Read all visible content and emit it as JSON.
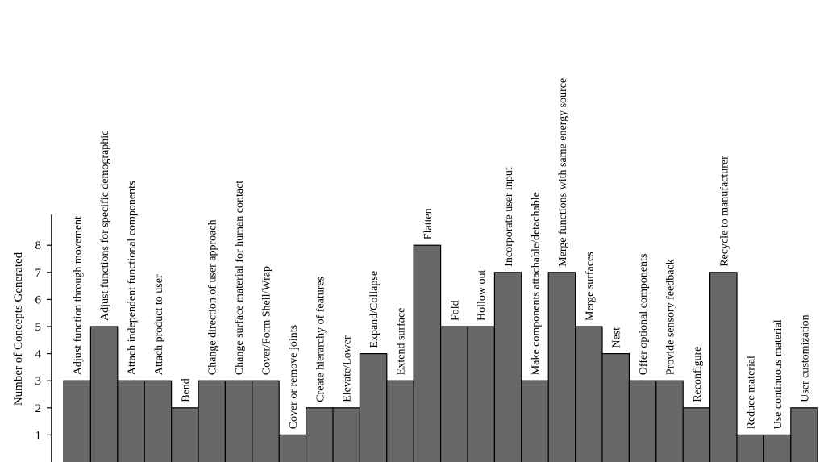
{
  "chart_data": {
    "type": "bar",
    "title": "",
    "xlabel": "",
    "ylabel": "Number of Concepts Generated",
    "ylim": [
      0,
      8
    ],
    "yticks": [
      1,
      2,
      3,
      4,
      5,
      6,
      7,
      8
    ],
    "grid": false,
    "legend": "none",
    "bar_color": "#686868",
    "categories": [
      "Adjust function through movement",
      "Adjust functions for specific demographic",
      "Attach independent functional components",
      "Attach product to user",
      "Bend",
      "Change direction of user approach",
      "Change surface material for human contact",
      "Cover/Form Shell/Wrap",
      "Cover or remove joints",
      "Create hierarchy of features",
      "Elevate/Lower",
      "Expand/Collapse",
      "Extend surface",
      "Flatten",
      "Fold",
      "Hollow out",
      "Incorporate user input",
      "Make components attachable/detachable",
      "Merge functions with same energy source",
      "Merge surfaces",
      "Nest",
      "Offer optional components",
      "Provide sensory feedback",
      "Reconfigure",
      "Recycle to manufacturer",
      "Reduce material",
      "Use continuous material",
      "User customization"
    ],
    "values": [
      3,
      5,
      3,
      3,
      2,
      3,
      3,
      3,
      1,
      2,
      2,
      4,
      3,
      8,
      5,
      5,
      7,
      3,
      7,
      5,
      4,
      3,
      3,
      2,
      7,
      1,
      1,
      2
    ]
  }
}
